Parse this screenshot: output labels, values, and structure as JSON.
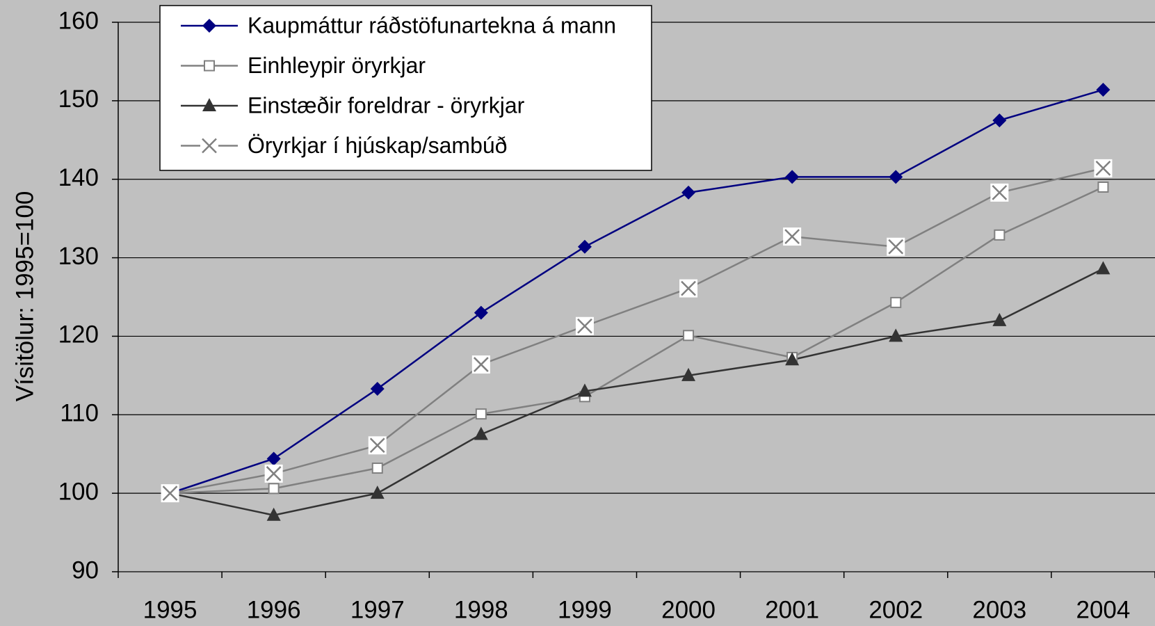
{
  "chart_data": {
    "type": "line",
    "y_label": "Vísitölur: 1995=100",
    "categories": [
      "1995",
      "1996",
      "1997",
      "1998",
      "1999",
      "2000",
      "2001",
      "2002",
      "2003",
      "2004"
    ],
    "series": [
      {
        "name": "Kaupmáttur ráðstöfunartekna á mann",
        "color": "#000080",
        "marker": "diamond",
        "values": [
          100,
          104.4,
          113.3,
          123,
          131.4,
          138.3,
          140.3,
          140.3,
          147.5,
          151.4
        ]
      },
      {
        "name": "Einhleypir öryrkjar",
        "color": "#808080",
        "marker": "square",
        "values": [
          100,
          100.6,
          103.2,
          110.1,
          112.3,
          120.1,
          117.3,
          124.3,
          132.9,
          139.0
        ]
      },
      {
        "name": "Einstæðir foreldrar - öryrkjar",
        "color": "#333333",
        "marker": "triangle",
        "values": [
          100,
          97.2,
          100,
          107.5,
          113,
          115,
          117,
          120,
          122,
          128.6
        ]
      },
      {
        "name": "Öryrkjar í hjúskap/sambúð",
        "color": "#808080",
        "marker": "x",
        "values": [
          100,
          102.5,
          106.1,
          116.4,
          121.3,
          126.1,
          132.7,
          131.4,
          138.3,
          141.4
        ]
      }
    ],
    "ylim": [
      90,
      160
    ],
    "yticks": [
      90,
      100,
      110,
      120,
      130,
      140,
      150,
      160
    ],
    "grid": true,
    "legend": "top-left"
  }
}
